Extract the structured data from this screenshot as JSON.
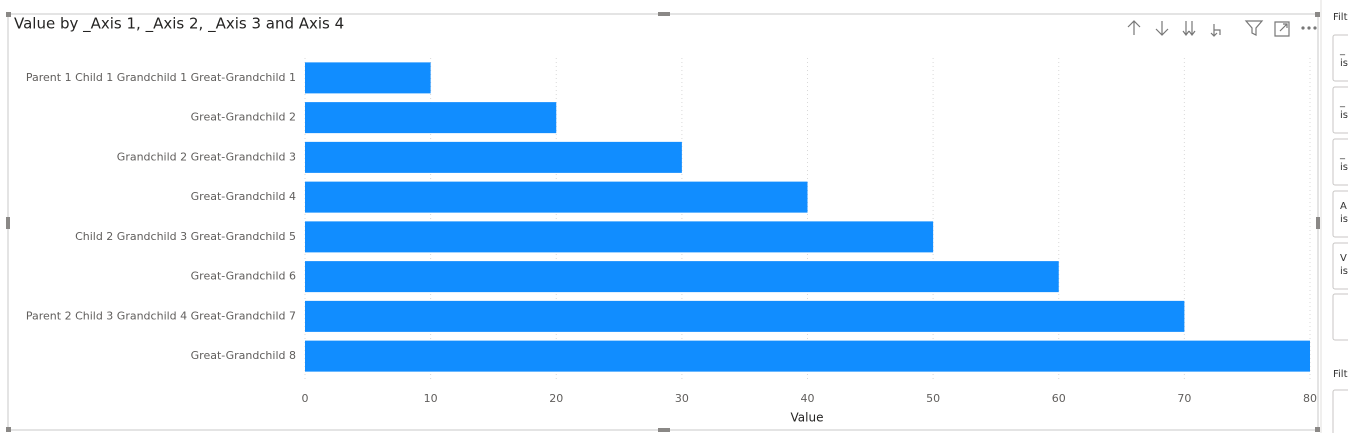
{
  "chart_data": {
    "type": "bar",
    "orientation": "horizontal",
    "title": "Value by _Axis 1, _Axis 2, _Axis 3 and Axis 4",
    "x_label": "Value",
    "categories": [
      "Parent 1 Child 1 Grandchild 1 Great-Grandchild 1",
      "Great-Grandchild 2",
      "Grandchild 2 Great-Grandchild 3",
      "Great-Grandchild 4",
      "Child 2 Grandchild 3 Great-Grandchild 5",
      "Great-Grandchild 6",
      "Parent 2 Child 3 Grandchild 4 Great-Grandchild 7",
      "Great-Grandchild 8"
    ],
    "values": [
      10,
      20,
      30,
      40,
      50,
      60,
      70,
      80
    ],
    "color": "#118DFF",
    "xlim": [
      0,
      80
    ],
    "xticks": [
      0,
      10,
      20,
      30,
      40,
      50,
      60,
      70,
      80
    ],
    "grid": true
  },
  "filters_pane": {
    "heading": "Filt",
    "cards": [
      [
        "_",
        "is"
      ],
      [
        "_",
        "is"
      ],
      [
        "_",
        "is"
      ],
      [
        "A",
        "is"
      ],
      [
        "V",
        "is"
      ]
    ],
    "heading2": "Filt"
  }
}
